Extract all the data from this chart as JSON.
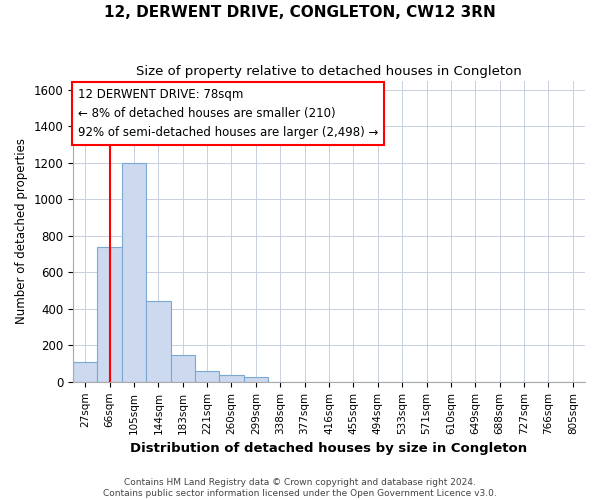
{
  "title": "12, DERWENT DRIVE, CONGLETON, CW12 3RN",
  "subtitle": "Size of property relative to detached houses in Congleton",
  "xlabel": "Distribution of detached houses by size in Congleton",
  "ylabel": "Number of detached properties",
  "bar_color": "#ccd9ee",
  "bar_edge_color": "#7aaad4",
  "grid_color": "#c8d0e0",
  "background_color": "#ffffff",
  "categories": [
    "27sqm",
    "66sqm",
    "105sqm",
    "144sqm",
    "183sqm",
    "221sqm",
    "260sqm",
    "299sqm",
    "338sqm",
    "377sqm",
    "416sqm",
    "455sqm",
    "494sqm",
    "533sqm",
    "571sqm",
    "610sqm",
    "649sqm",
    "688sqm",
    "727sqm",
    "766sqm",
    "805sqm"
  ],
  "values": [
    110,
    740,
    1200,
    440,
    145,
    60,
    38,
    28,
    0,
    0,
    0,
    0,
    0,
    0,
    0,
    0,
    0,
    0,
    0,
    0,
    0
  ],
  "ylim": [
    0,
    1650
  ],
  "yticks": [
    0,
    200,
    400,
    600,
    800,
    1000,
    1200,
    1400,
    1600
  ],
  "annotation_line1": "12 DERWENT DRIVE: 78sqm",
  "annotation_line2": "← 8% of detached houses are smaller (210)",
  "annotation_line3": "92% of semi-detached houses are larger (2,498) →",
  "red_line_x": 1.0,
  "footnote1": "Contains HM Land Registry data © Crown copyright and database right 2024.",
  "footnote2": "Contains public sector information licensed under the Open Government Licence v3.0."
}
